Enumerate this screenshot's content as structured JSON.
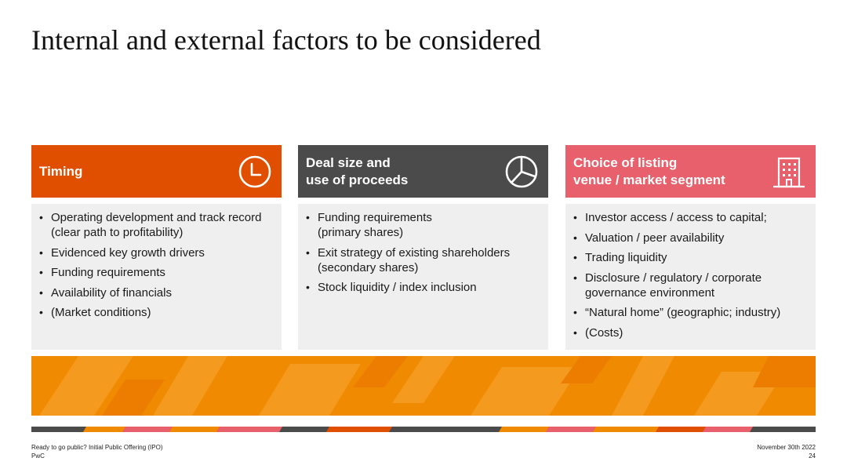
{
  "title": "Internal and external factors to be considered",
  "columns": [
    {
      "header": [
        "Timing"
      ],
      "icon": "clock-icon",
      "items": [
        [
          "Operating development and track record",
          "(clear path to profitability)"
        ],
        [
          "Evidenced key growth drivers"
        ],
        [
          "Funding requirements"
        ],
        [
          "Availability of financials"
        ],
        [
          "(Market conditions)"
        ]
      ]
    },
    {
      "header": [
        "Deal size and",
        "use of proceeds"
      ],
      "icon": "pie-chart-icon",
      "items": [
        [
          "Funding requirements",
          "(primary shares)"
        ],
        [
          "Exit strategy of existing shareholders",
          "(secondary shares)"
        ],
        [
          "Stock liquidity / index inclusion"
        ]
      ]
    },
    {
      "header": [
        "Choice of listing",
        "venue / market segment"
      ],
      "icon": "building-icon",
      "items": [
        [
          "Investor access / access to capital;"
        ],
        [
          "Valuation / peer availability"
        ],
        [
          "Trading liquidity"
        ],
        [
          "Disclosure / regulatory / corporate",
          "governance environment"
        ],
        [
          "“Natural home” (geographic; industry)"
        ],
        [
          "(Costs)"
        ]
      ]
    }
  ],
  "colors": {
    "timing": "#e04f00",
    "deal": "#4b4b4b",
    "listing": "#e7606b",
    "band": "#f08a00"
  },
  "footer": {
    "left": [
      "Ready to go public? Initial Public Offering (IPO)",
      "PwC"
    ],
    "right": [
      "November 30th 2022",
      "24"
    ]
  }
}
